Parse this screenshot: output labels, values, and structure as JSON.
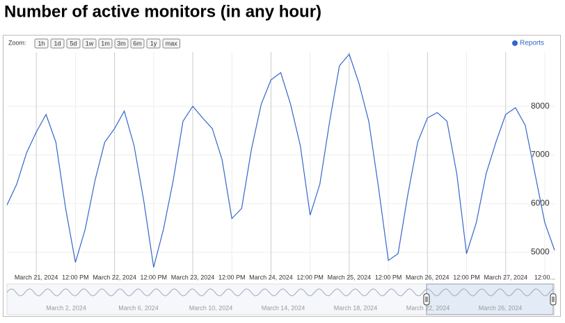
{
  "chart_data": {
    "type": "line",
    "title": "Number of active monitors (in any hour)",
    "categories": [
      null,
      null,
      null,
      "March 21, 2024",
      null,
      null,
      null,
      "12:00 PM",
      null,
      null,
      null,
      "March 22, 2024",
      null,
      null,
      null,
      "12:00 PM",
      null,
      null,
      null,
      "March 23, 2024",
      null,
      null,
      null,
      "12:00 PM",
      null,
      null,
      null,
      "March 24, 2024",
      null,
      null,
      null,
      "12:00 PM",
      null,
      null,
      null,
      "March 25, 2024",
      null,
      null,
      null,
      "12:00 PM",
      null,
      null,
      null,
      "March 26, 2024",
      null,
      null,
      null,
      "12:00 PM",
      null,
      null,
      null,
      "March 27, 2024",
      null,
      null,
      null,
      "12:00...",
      null
    ],
    "series": [
      {
        "name": "Reports",
        "color": "#3366cc",
        "values": [
          5970,
          6400,
          7040,
          7470,
          7830,
          7260,
          5900,
          4790,
          5470,
          6470,
          7260,
          7540,
          7900,
          7190,
          6040,
          4690,
          5470,
          6470,
          7690,
          8000,
          7760,
          7540,
          6900,
          5690,
          5900,
          7110,
          8040,
          8540,
          8690,
          8040,
          7190,
          5760,
          6400,
          7690,
          8830,
          9070,
          8470,
          7690,
          6330,
          4830,
          4970,
          6190,
          7260,
          7760,
          7870,
          7690,
          6610,
          4970,
          5610,
          6610,
          7260,
          7830,
          7970,
          7610,
          6610,
          5610,
          5040
        ]
      }
    ],
    "ylim": [
      4460,
      9110
    ],
    "yticks": [
      5000,
      6000,
      7000,
      8000
    ],
    "grid": true
  },
  "zoom": {
    "label": "Zoom:",
    "buttons": [
      "1h",
      "1d",
      "5d",
      "1w",
      "1m",
      "3m",
      "6m",
      "1y",
      "max"
    ]
  },
  "navigator": {
    "labels": [
      "March 2, 2024",
      "March 6, 2024",
      "March 10, 2024",
      "March 14, 2024",
      "March 18, 2024",
      "March 22, 2024",
      "March 26, 2024"
    ]
  }
}
